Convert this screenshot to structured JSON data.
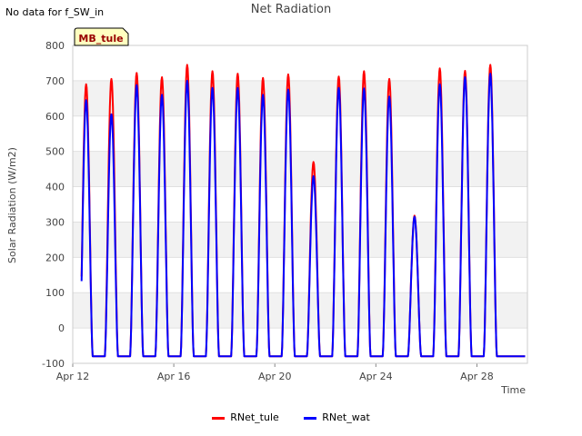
{
  "header": {
    "no_data_text": "No data for f_SW_in",
    "title": "Net Radiation"
  },
  "chart_data": {
    "type": "line",
    "title": "Net Radiation",
    "xlabel": "Time",
    "ylabel": "Solar Radiation (W/m2)",
    "ylim": [
      -100,
      800
    ],
    "xlim_days": [
      "Apr 12",
      "Apr 30"
    ],
    "y_ticks": [
      -100,
      0,
      100,
      200,
      300,
      400,
      500,
      600,
      700,
      800
    ],
    "x_ticks": [
      "Apr 12",
      "Apr 16",
      "Apr 20",
      "Apr 24",
      "Apr 28"
    ],
    "site_badge": "MB_tule",
    "grid": "alternating horizontal bands",
    "legend_position": "bottom-center",
    "daily_peaks": {
      "dates": [
        "Apr 12",
        "Apr 13",
        "Apr 14",
        "Apr 15",
        "Apr 16",
        "Apr 17",
        "Apr 18",
        "Apr 19",
        "Apr 20",
        "Apr 21",
        "Apr 22",
        "Apr 23",
        "Apr 24",
        "Apr 25",
        "Apr 26",
        "Apr 27",
        "Apr 28",
        "Apr 29"
      ],
      "night_baseline": -80
    },
    "series": [
      {
        "name": "RNet_tule",
        "color": "#ff0000",
        "daily_peak": [
          690,
          705,
          722,
          710,
          745,
          727,
          720,
          708,
          718,
          470,
          712,
          727,
          705,
          318,
          735,
          728,
          745,
          0
        ]
      },
      {
        "name": "RNet_wat",
        "color": "#0000ff",
        "daily_peak": [
          645,
          605,
          688,
          660,
          700,
          680,
          680,
          660,
          675,
          430,
          680,
          678,
          655,
          315,
          690,
          710,
          720,
          0
        ]
      }
    ]
  },
  "legend": {
    "items": [
      {
        "label": "RNet_tule",
        "color": "#ff0000"
      },
      {
        "label": "RNet_wat",
        "color": "#0000ff"
      }
    ]
  }
}
